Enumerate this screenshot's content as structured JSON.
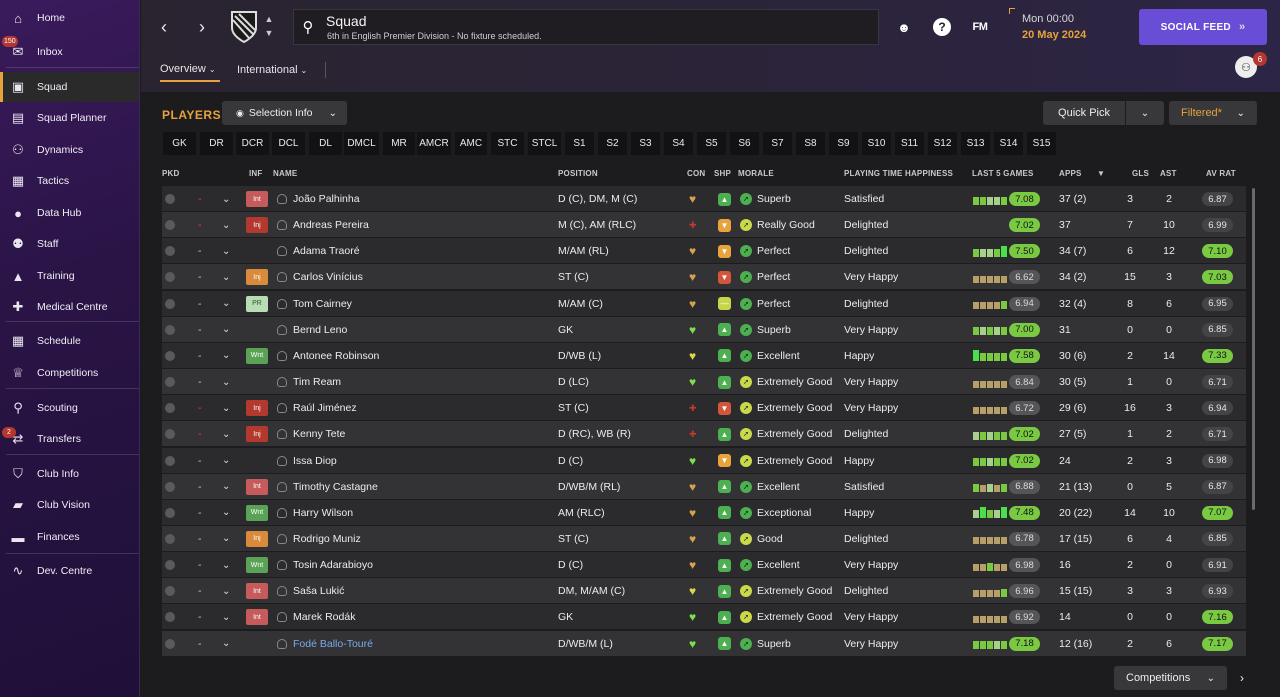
{
  "sidebar": {
    "items": [
      {
        "label": "Home",
        "icon": "home-icon",
        "glyph": "⌂"
      },
      {
        "label": "Inbox",
        "icon": "inbox-icon",
        "glyph": "✉",
        "badge": "150"
      },
      {
        "label": "Squad",
        "icon": "squad-icon",
        "glyph": "▣",
        "active": true
      },
      {
        "label": "Squad Planner",
        "icon": "planner-icon",
        "glyph": "▤"
      },
      {
        "label": "Dynamics",
        "icon": "dynamics-icon",
        "glyph": "⚇"
      },
      {
        "label": "Tactics",
        "icon": "tactics-icon",
        "glyph": "▦"
      },
      {
        "label": "Data Hub",
        "icon": "data-hub-icon",
        "glyph": "●"
      },
      {
        "label": "Staff",
        "icon": "staff-icon",
        "glyph": "⚉"
      },
      {
        "label": "Training",
        "icon": "training-icon",
        "glyph": "▲"
      },
      {
        "label": "Medical Centre",
        "icon": "medical-icon",
        "glyph": "✚"
      },
      {
        "label": "Schedule",
        "icon": "schedule-icon",
        "glyph": "▦"
      },
      {
        "label": "Competitions",
        "icon": "trophy-icon",
        "glyph": "♕"
      },
      {
        "label": "Scouting",
        "icon": "scouting-icon",
        "glyph": "⚲"
      },
      {
        "label": "Transfers",
        "icon": "transfers-icon",
        "glyph": "⇄",
        "badge": "2"
      },
      {
        "label": "Club Info",
        "icon": "club-info-icon",
        "glyph": "⛉"
      },
      {
        "label": "Club Vision",
        "icon": "club-vision-icon",
        "glyph": "▰"
      },
      {
        "label": "Finances",
        "icon": "finances-icon",
        "glyph": "▬"
      },
      {
        "label": "Dev. Centre",
        "icon": "dev-centre-icon",
        "glyph": "∿"
      }
    ]
  },
  "header": {
    "title": "Squad",
    "subtitle": "6th in English Premier Division - No fixture scheduled.",
    "time": "Mon 00:00",
    "date": "20 May 2024",
    "social_feed": "SOCIAL FEED",
    "fm_logo": "FM",
    "people_badge": "6",
    "tabs": [
      "Overview",
      "International"
    ]
  },
  "toolbar": {
    "players_label": "PLAYERS",
    "selection_info": "Selection Info",
    "quick_pick": "Quick Pick",
    "filtered": "Filtered*",
    "competitions": "Competitions"
  },
  "position_filters": [
    "GK",
    "DR",
    "DCR",
    "DCL",
    "DL",
    "DMCL",
    "MR",
    "AMCR",
    "AMC",
    "STC",
    "STCL",
    "S1",
    "S2",
    "S3",
    "S4",
    "S5",
    "S6",
    "S7",
    "S8",
    "S9",
    "S10",
    "S11",
    "S12",
    "S13",
    "S14",
    "S15"
  ],
  "columns": {
    "pkd": "PKD",
    "inf": "INF",
    "name": "NAME",
    "position": "POSITION",
    "con": "CON",
    "shp": "SHP",
    "morale": "MORALE",
    "happiness": "PLAYING TIME HAPPINESS",
    "last5": "LAST 5 GAMES",
    "apps": "APPS",
    "gls": "GLS",
    "ast": "AST",
    "avrat": "AV RAT"
  },
  "colors": {
    "accent": "#e6a23c",
    "social": "#6a4dd6",
    "good_rating": "#7ac943",
    "injury": "#b3382e"
  },
  "players": [
    {
      "dash_red": true,
      "inf": "Int",
      "inf_type": "int",
      "name": "João Palhinha",
      "position": "D (C), DM, M (C)",
      "con": "gold",
      "shp": "green",
      "morale_icon": "green",
      "morale": "Superb",
      "happiness": "Satisfied",
      "last5": [
        "g",
        "g",
        "lg",
        "lg",
        "g"
      ],
      "form": "7.08",
      "form_good": true,
      "apps": "37 (2)",
      "gls": "3",
      "ast": "2",
      "avrat": "6.87",
      "avrat_good": false
    },
    {
      "dash_red": true,
      "inf": "Inj",
      "inf_type": "inj",
      "name": "Andreas Pereira",
      "position": "M (C), AM (RLC)",
      "con": "injured",
      "shp": "orange",
      "morale_icon": "yellow",
      "morale": "Really Good",
      "happiness": "Delighted",
      "last5": [],
      "form": "7.02",
      "form_good": true,
      "apps": "37",
      "gls": "7",
      "ast": "10",
      "avrat": "6.99",
      "avrat_good": false
    },
    {
      "dash_red": false,
      "inf": "",
      "inf_type": "",
      "name": "Adama Traoré",
      "position": "M/AM (RL)",
      "con": "gold",
      "shp": "orange",
      "morale_icon": "green",
      "morale": "Perfect",
      "happiness": "Delighted",
      "last5": [
        "g",
        "lg",
        "lg",
        "g",
        "bg"
      ],
      "form": "7.50",
      "form_good": true,
      "apps": "34 (7)",
      "gls": "6",
      "ast": "12",
      "avrat": "7.10",
      "avrat_good": true
    },
    {
      "dash_red": false,
      "inf": "Inj",
      "inf_type": "injo",
      "name": "Carlos Vinícius",
      "position": "ST (C)",
      "con": "gold",
      "shp": "red",
      "morale_icon": "green",
      "morale": "Perfect",
      "happiness": "Very Happy",
      "last5": [
        "t",
        "t",
        "t",
        "t",
        "t"
      ],
      "form": "6.62",
      "form_good": false,
      "apps": "34 (2)",
      "gls": "15",
      "ast": "3",
      "avrat": "7.03",
      "avrat_good": true
    },
    {
      "dash_red": false,
      "inf": "PR",
      "inf_type": "pr",
      "name": "Tom Cairney",
      "position": "M/AM (C)",
      "con": "gold",
      "shp": "yellow",
      "morale_icon": "green",
      "morale": "Perfect",
      "happiness": "Delighted",
      "last5": [
        "t",
        "t",
        "t",
        "t",
        "g"
      ],
      "form": "6.94",
      "form_good": false,
      "apps": "32 (4)",
      "gls": "8",
      "ast": "6",
      "avrat": "6.95",
      "avrat_good": false
    },
    {
      "dash_red": false,
      "inf": "",
      "inf_type": "",
      "name": "Bernd Leno",
      "position": "GK",
      "con": "green",
      "shp": "green",
      "morale_icon": "green",
      "morale": "Superb",
      "happiness": "Very Happy",
      "last5": [
        "g",
        "lg",
        "g",
        "lg",
        "g"
      ],
      "form": "7.00",
      "form_good": true,
      "apps": "31",
      "gls": "0",
      "ast": "0",
      "avrat": "6.85",
      "avrat_good": false
    },
    {
      "dash_red": false,
      "inf": "Wnt",
      "inf_type": "wnt",
      "name": "Antonee Robinson",
      "position": "D/WB (L)",
      "con": "yellow",
      "shp": "green",
      "morale_icon": "green",
      "morale": "Excellent",
      "happiness": "Happy",
      "last5": [
        "bg",
        "g",
        "g",
        "g",
        "g"
      ],
      "form": "7.58",
      "form_good": true,
      "apps": "30 (6)",
      "gls": "2",
      "ast": "14",
      "avrat": "7.33",
      "avrat_good": true
    },
    {
      "dash_red": false,
      "inf": "",
      "inf_type": "",
      "name": "Tim Ream",
      "position": "D (LC)",
      "con": "green",
      "shp": "green",
      "morale_icon": "yellow",
      "morale": "Extremely Good",
      "happiness": "Very Happy",
      "last5": [
        "t",
        "t",
        "t",
        "t",
        "t"
      ],
      "form": "6.84",
      "form_good": false,
      "apps": "30 (5)",
      "gls": "1",
      "ast": "0",
      "avrat": "6.71",
      "avrat_good": false
    },
    {
      "dash_red": true,
      "inf": "Inj",
      "inf_type": "inj",
      "name": "Raúl Jiménez",
      "position": "ST (C)",
      "con": "injured",
      "shp": "red",
      "morale_icon": "yellow",
      "morale": "Extremely Good",
      "happiness": "Very Happy",
      "last5": [
        "t",
        "t",
        "t",
        "t",
        "t"
      ],
      "form": "6.72",
      "form_good": false,
      "apps": "29 (6)",
      "gls": "16",
      "ast": "3",
      "avrat": "6.94",
      "avrat_good": false
    },
    {
      "dash_red": true,
      "inf": "Inj",
      "inf_type": "inj",
      "name": "Kenny Tete",
      "position": "D (RC), WB (R)",
      "con": "injured",
      "shp": "green",
      "morale_icon": "yellow",
      "morale": "Extremely Good",
      "happiness": "Delighted",
      "last5": [
        "lg",
        "g",
        "lg",
        "g",
        "g"
      ],
      "form": "7.02",
      "form_good": true,
      "apps": "27 (5)",
      "gls": "1",
      "ast": "2",
      "avrat": "6.71",
      "avrat_good": false
    },
    {
      "dash_red": false,
      "inf": "",
      "inf_type": "",
      "name": "Issa Diop",
      "position": "D (C)",
      "con": "green",
      "shp": "orange",
      "morale_icon": "yellow",
      "morale": "Extremely Good",
      "happiness": "Happy",
      "last5": [
        "g",
        "g",
        "lg",
        "g",
        "g"
      ],
      "form": "7.02",
      "form_good": true,
      "apps": "24",
      "gls": "2",
      "ast": "3",
      "avrat": "6.98",
      "avrat_good": false
    },
    {
      "dash_red": false,
      "inf": "Int",
      "inf_type": "int",
      "name": "Timothy Castagne",
      "position": "D/WB/M (RL)",
      "con": "gold",
      "shp": "green",
      "morale_icon": "green",
      "morale": "Excellent",
      "happiness": "Satisfied",
      "last5": [
        "g",
        "t",
        "lg",
        "t",
        "g"
      ],
      "form": "6.88",
      "form_good": false,
      "apps": "21 (13)",
      "gls": "0",
      "ast": "5",
      "avrat": "6.87",
      "avrat_good": false
    },
    {
      "dash_red": false,
      "inf": "Wnt",
      "inf_type": "wnt",
      "name": "Harry Wilson",
      "position": "AM (RLC)",
      "con": "gold",
      "shp": "green",
      "morale_icon": "green",
      "morale": "Exceptional",
      "happiness": "Happy",
      "last5": [
        "lg",
        "bg",
        "g",
        "lg",
        "bg"
      ],
      "form": "7.48",
      "form_good": true,
      "apps": "20 (22)",
      "gls": "14",
      "ast": "10",
      "avrat": "7.07",
      "avrat_good": true
    },
    {
      "dash_red": false,
      "inf": "Inj",
      "inf_type": "injo",
      "name": "Rodrigo Muniz",
      "position": "ST (C)",
      "con": "gold",
      "shp": "green",
      "morale_icon": "yellow",
      "morale": "Good",
      "happiness": "Delighted",
      "last5": [
        "t",
        "t",
        "t",
        "t",
        "t"
      ],
      "form": "6.78",
      "form_good": false,
      "apps": "17 (15)",
      "gls": "6",
      "ast": "4",
      "avrat": "6.85",
      "avrat_good": false
    },
    {
      "dash_red": false,
      "inf": "Wnt",
      "inf_type": "wnt",
      "name": "Tosin Adarabioyo",
      "position": "D (C)",
      "con": "gold",
      "shp": "green",
      "morale_icon": "green",
      "morale": "Excellent",
      "happiness": "Very Happy",
      "last5": [
        "t",
        "t",
        "g",
        "t",
        "t"
      ],
      "form": "6.98",
      "form_good": false,
      "apps": "16",
      "gls": "2",
      "ast": "0",
      "avrat": "6.91",
      "avrat_good": false
    },
    {
      "dash_red": false,
      "inf": "Int",
      "inf_type": "int",
      "name": "Saša Lukić",
      "position": "DM, M/AM (C)",
      "con": "yellow",
      "shp": "green",
      "morale_icon": "yellow",
      "morale": "Extremely Good",
      "happiness": "Delighted",
      "last5": [
        "t",
        "t",
        "t",
        "t",
        "g"
      ],
      "form": "6.96",
      "form_good": false,
      "apps": "15 (15)",
      "gls": "3",
      "ast": "3",
      "avrat": "6.93",
      "avrat_good": false
    },
    {
      "dash_red": false,
      "inf": "Int",
      "inf_type": "int",
      "name": "Marek Rodák",
      "position": "GK",
      "con": "green",
      "shp": "green",
      "morale_icon": "yellow",
      "morale": "Extremely Good",
      "happiness": "Very Happy",
      "last5": [
        "t",
        "t",
        "t",
        "t",
        "t"
      ],
      "form": "6.92",
      "form_good": false,
      "apps": "14",
      "gls": "0",
      "ast": "0",
      "avrat": "7.16",
      "avrat_good": true
    },
    {
      "dash_red": false,
      "inf": "",
      "inf_type": "",
      "name": "Fodé Ballo-Touré",
      "link": true,
      "position": "D/WB/M (L)",
      "con": "green",
      "shp": "green",
      "morale_icon": "green",
      "morale": "Superb",
      "happiness": "Very Happy",
      "last5": [
        "g",
        "g",
        "g",
        "lg",
        "g"
      ],
      "form": "7.18",
      "form_good": true,
      "apps": "12 (16)",
      "gls": "2",
      "ast": "6",
      "avrat": "7.17",
      "avrat_good": true
    }
  ]
}
